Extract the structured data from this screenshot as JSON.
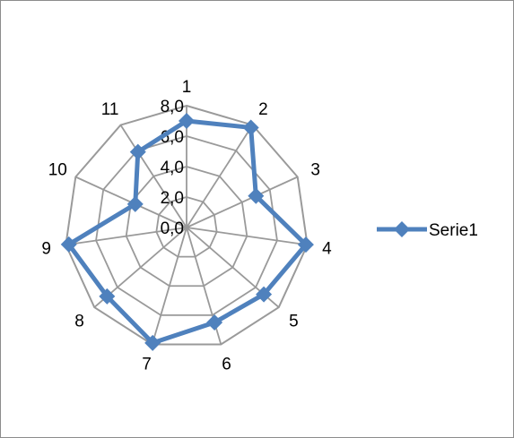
{
  "chart_data": {
    "type": "radar",
    "categories": [
      "1",
      "2",
      "3",
      "4",
      "5",
      "6",
      "7",
      "8",
      "9",
      "10",
      "11"
    ],
    "series": [
      {
        "name": "Serie1",
        "values": [
          7.0,
          7.8,
          5.0,
          7.9,
          6.7,
          6.5,
          7.9,
          6.9,
          7.8,
          3.7,
          5.9
        ],
        "color": "#4f81bd"
      }
    ],
    "r_ticks": [
      "0,0",
      "2,0",
      "4,0",
      "6,0",
      "8,0"
    ],
    "rlim": [
      0,
      8
    ],
    "grid": true,
    "legend": "right"
  }
}
